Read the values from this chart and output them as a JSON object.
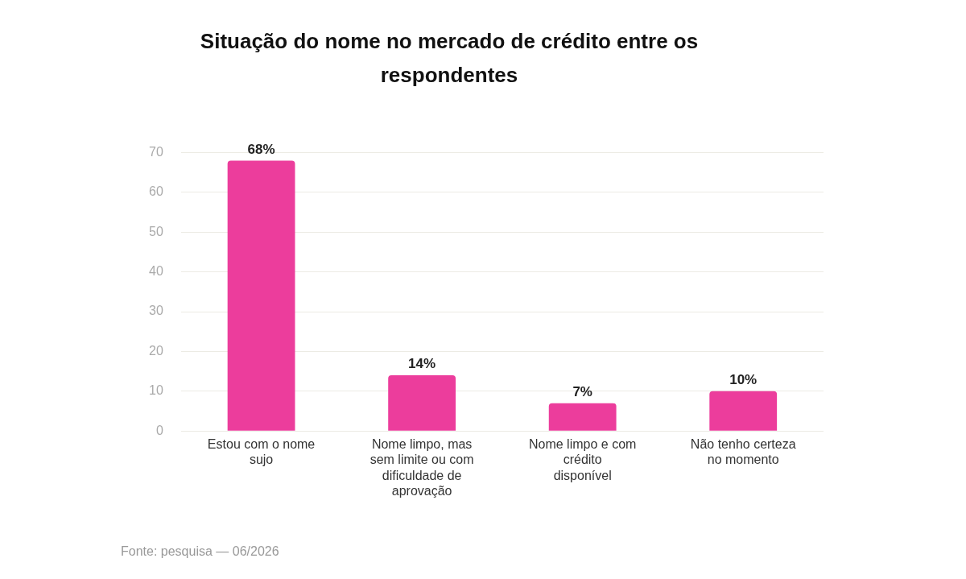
{
  "chart_data": {
    "type": "bar",
    "title": "Situação do nome no mercado de crédito entre os respondentes",
    "categories": [
      "Estou com o nome sujo",
      "Nome limpo, mas sem limite ou com dificuldade de aprovação",
      "Nome limpo e com crédito disponível",
      "Não tenho certeza no momento"
    ],
    "values": [
      68,
      14,
      7,
      10
    ],
    "value_labels": [
      "68%",
      "14%",
      "7%",
      "10%"
    ],
    "color": "#ec3d9c",
    "ylim": [
      0,
      70
    ],
    "yticks": [
      0,
      10,
      20,
      30,
      40,
      50,
      60,
      70
    ],
    "grid": "y",
    "annotations": [
      "Fonte: pesquisa — 06/2026"
    ]
  }
}
